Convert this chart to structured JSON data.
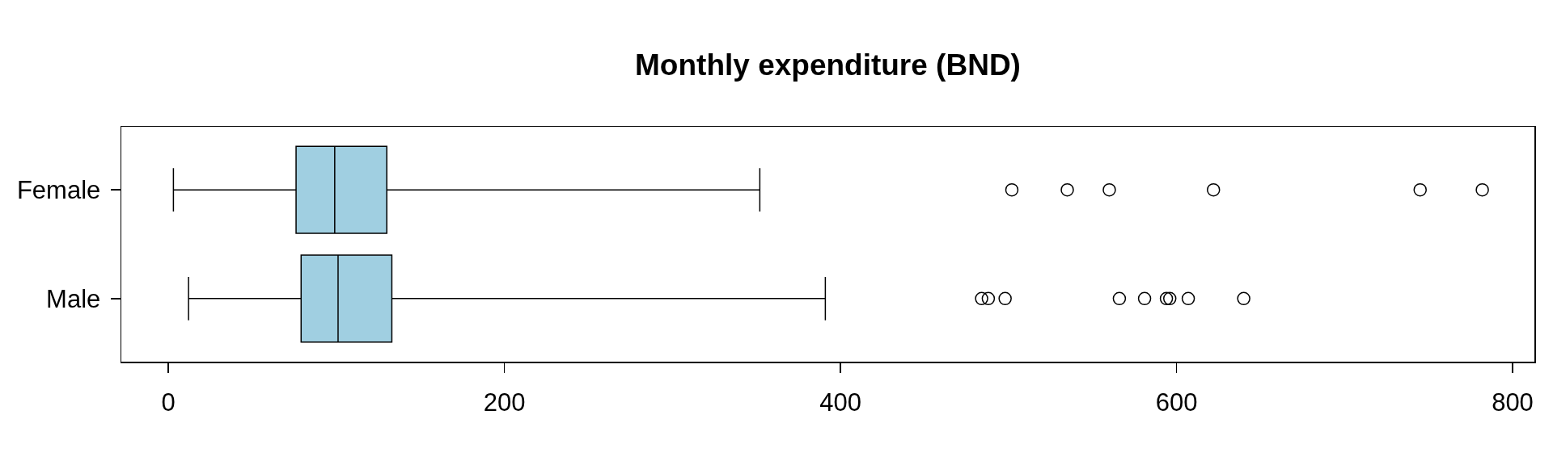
{
  "chart_data": {
    "type": "box",
    "title": "Monthly expenditure (BND)",
    "orientation": "horizontal",
    "categories": [
      "Female",
      "Male"
    ],
    "boxes": [
      {
        "low": 3,
        "q1": 76,
        "median": 99,
        "q3": 130,
        "high": 352,
        "outliers": [
          502,
          535,
          560,
          622,
          745,
          782
        ]
      },
      {
        "low": 12,
        "q1": 79,
        "median": 101,
        "q3": 133,
        "high": 391,
        "outliers": [
          484,
          488,
          498,
          566,
          581,
          594,
          596,
          607,
          640
        ]
      }
    ],
    "color": "#a0cfe1",
    "marker": "circle",
    "xlim": [
      -28,
      813
    ],
    "xticks": [
      0,
      200,
      400,
      600,
      800
    ]
  }
}
